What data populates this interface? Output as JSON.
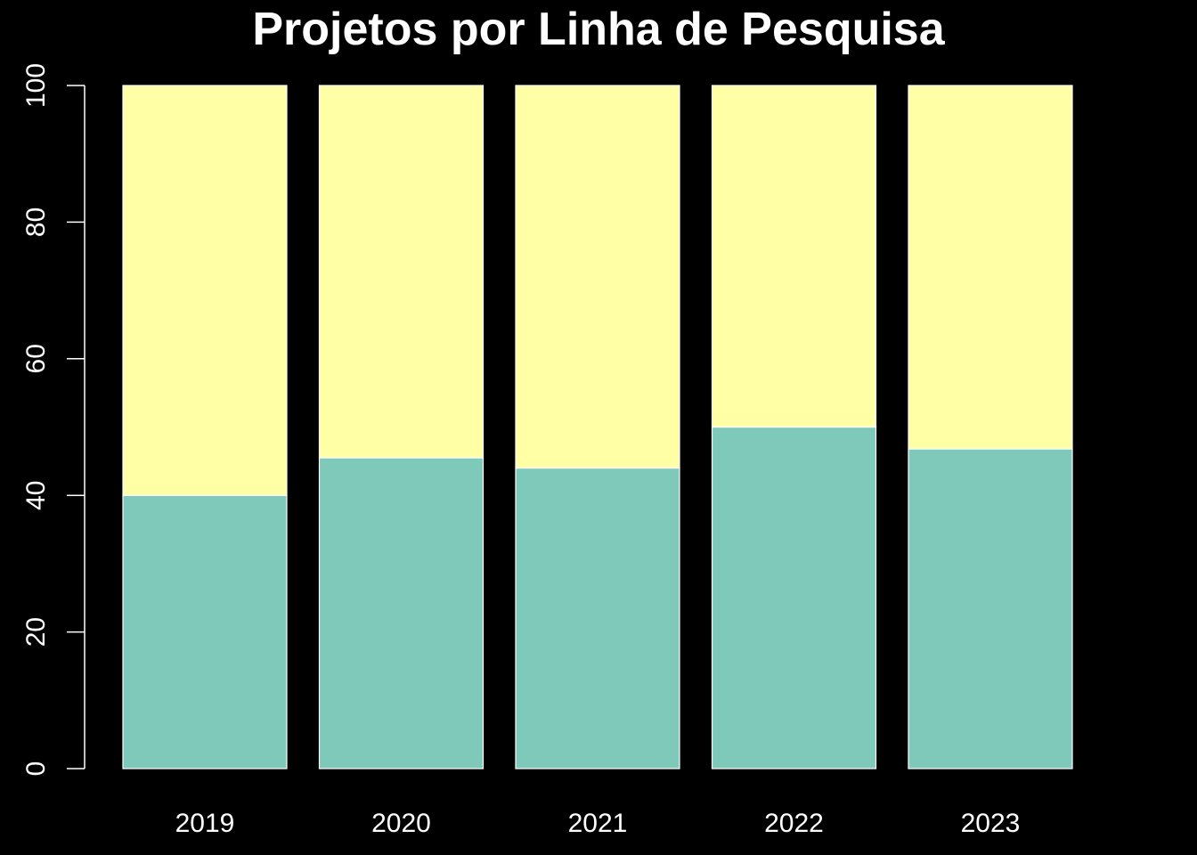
{
  "chart_data": {
    "type": "bar",
    "stacked": true,
    "title": "Projetos por Linha de Pesquisa",
    "xlabel": "",
    "ylabel": "",
    "categories": [
      "2019",
      "2020",
      "2021",
      "2022",
      "2023"
    ],
    "ylim": [
      0,
      100
    ],
    "yticks": [
      "0",
      "20",
      "40",
      "60",
      "80",
      "100"
    ],
    "grid": false,
    "legend": "none",
    "series": [
      {
        "values": [
          40,
          45.5,
          44,
          50,
          46.8
        ],
        "color": "#7fc9bb"
      },
      {
        "values": [
          60,
          54.5,
          56,
          50,
          53.2
        ],
        "color": "#ffffa6"
      }
    ],
    "colors": {
      "background": "#000000",
      "axis": "#ffffff",
      "text": "#ffffff",
      "bar_border": "#ffffff"
    }
  }
}
